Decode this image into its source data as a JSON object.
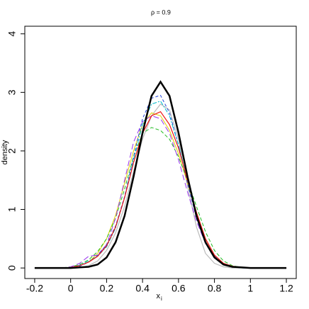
{
  "chart_data": {
    "type": "line",
    "title": "ρ = 0.9",
    "xlabel": "x",
    "xlabel_subscript": "i",
    "ylabel": "density",
    "xlim": [
      -0.255,
      1.255
    ],
    "ylim": [
      -0.18,
      4.13
    ],
    "xticks": [
      -0.2,
      0.0,
      0.2,
      0.4,
      0.6,
      0.8,
      1.0,
      1.2
    ],
    "yticks": [
      0,
      1,
      2,
      3,
      4
    ],
    "x": [
      -0.2,
      -0.15,
      -0.1,
      -0.05,
      0,
      0.05,
      0.1,
      0.15,
      0.2,
      0.25,
      0.3,
      0.35,
      0.4,
      0.45,
      0.5,
      0.55,
      0.6,
      0.65,
      0.7,
      0.75,
      0.8,
      0.85,
      0.9,
      0.95,
      1,
      1.05,
      1.1,
      1.15,
      1.2
    ],
    "series": [
      {
        "color": "#bbbbbb",
        "width": 1.2,
        "dash": "",
        "values": [
          0,
          0,
          0,
          0,
          0,
          0.01,
          0.04,
          0.12,
          0.3,
          0.6,
          1.05,
          1.65,
          2.2,
          2.6,
          2.8,
          2.7,
          2.2,
          1.4,
          0.7,
          0.25,
          0.08,
          0.02,
          0,
          0,
          0,
          0,
          0,
          0,
          0
        ]
      },
      {
        "color": "#e0d000",
        "width": 1,
        "dash": "",
        "values": [
          0,
          0,
          0,
          0,
          0.01,
          0.04,
          0.1,
          0.25,
          0.5,
          0.9,
          1.45,
          2.0,
          2.45,
          2.65,
          2.6,
          2.35,
          1.95,
          1.45,
          0.95,
          0.5,
          0.22,
          0.08,
          0.02,
          0,
          0,
          0,
          0,
          0,
          0
        ]
      },
      {
        "color": "#22bb22",
        "width": 1,
        "dash": "5,3",
        "values": [
          0,
          0,
          0,
          0,
          0.02,
          0.06,
          0.14,
          0.28,
          0.5,
          0.85,
          1.35,
          1.9,
          2.3,
          2.4,
          2.35,
          2.2,
          1.9,
          1.5,
          1.05,
          0.62,
          0.3,
          0.12,
          0.04,
          0.01,
          0,
          0,
          0,
          0,
          0
        ]
      },
      {
        "color": "#9933ee",
        "width": 1,
        "dash": "8,4",
        "values": [
          0,
          0,
          0,
          0,
          0.02,
          0.08,
          0.2,
          0.22,
          0.4,
          0.85,
          1.5,
          2.15,
          2.5,
          2.6,
          2.55,
          2.3,
          1.85,
          1.3,
          0.8,
          0.42,
          0.2,
          0.08,
          0.02,
          0,
          0,
          0,
          0,
          0,
          0
        ]
      },
      {
        "color": "#2244dd",
        "width": 1,
        "dash": "4,3",
        "values": [
          0,
          0,
          0,
          0,
          0,
          0.03,
          0.1,
          0.22,
          0.4,
          0.72,
          1.22,
          1.9,
          2.55,
          2.9,
          2.95,
          2.65,
          2.1,
          1.45,
          0.85,
          0.42,
          0.18,
          0.07,
          0.02,
          0,
          0,
          0,
          0,
          0,
          0
        ]
      },
      {
        "color": "#00bbcc",
        "width": 1,
        "dash": "6,2,2,2",
        "values": [
          0,
          0,
          0,
          0,
          0.01,
          0.05,
          0.12,
          0.2,
          0.36,
          0.68,
          1.2,
          1.85,
          2.45,
          2.8,
          2.85,
          2.6,
          2.1,
          1.5,
          0.9,
          0.45,
          0.2,
          0.07,
          0.02,
          0,
          0,
          0,
          0,
          0,
          0
        ]
      },
      {
        "color": "#ee1111",
        "width": 1.2,
        "dash": "",
        "values": [
          0,
          0,
          0,
          0,
          0.01,
          0.04,
          0.1,
          0.2,
          0.38,
          0.7,
          1.2,
          1.8,
          2.3,
          2.6,
          2.67,
          2.45,
          2.05,
          1.5,
          0.95,
          0.5,
          0.22,
          0.08,
          0.03,
          0.01,
          0,
          0,
          0,
          0,
          0
        ]
      },
      {
        "color": "#000000",
        "width": 2.5,
        "dash": "",
        "values": [
          0,
          0,
          0,
          0,
          0,
          0.01,
          0.02,
          0.06,
          0.18,
          0.44,
          0.89,
          1.56,
          2.31,
          2.94,
          3.18,
          2.94,
          2.31,
          1.56,
          0.89,
          0.44,
          0.18,
          0.06,
          0.02,
          0.01,
          0,
          0,
          0,
          0,
          0
        ]
      }
    ]
  }
}
